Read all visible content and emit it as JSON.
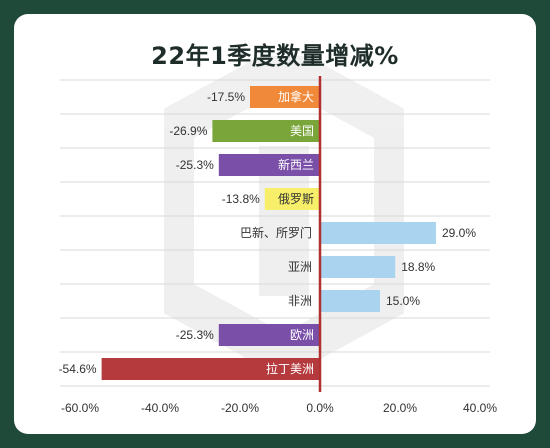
{
  "chart_data": {
    "type": "bar",
    "orientation": "horizontal",
    "title": "22年1季度数量增减%",
    "categories": [
      "加拿大",
      "美国",
      "新西兰",
      "俄罗斯",
      "巴新、所罗门",
      "亚洲",
      "非洲",
      "欧洲",
      "拉丁美洲"
    ],
    "values": [
      -17.5,
      -26.9,
      -25.3,
      -13.8,
      29.0,
      18.8,
      15.0,
      -25.3,
      -54.6
    ],
    "value_labels": [
      "-17.5%",
      "-26.9%",
      "-25.3%",
      "-13.8%",
      "29.0%",
      "18.8%",
      "15.0%",
      "-25.3%",
      "-54.6%"
    ],
    "bar_colors": [
      "#f08a3a",
      "#7aa53a",
      "#7a4fa8",
      "#f7ef6a",
      "#a9d3ef",
      "#a9d3ef",
      "#a9d3ef",
      "#7a4fa8",
      "#b53a3e"
    ],
    "label_colors": [
      "#ffffff",
      "#ffffff",
      "#ffffff",
      "#333333",
      "#333333",
      "#333333",
      "#333333",
      "#ffffff",
      "#ffffff"
    ],
    "xlim": [
      -60,
      40
    ],
    "x_ticks": [
      -60,
      -40,
      -20,
      0,
      20,
      40
    ],
    "x_tick_labels": [
      "-60.0%",
      "-40.0%",
      "-20.0%",
      "0.0%",
      "20.0%",
      "40.0%"
    ],
    "grid": true,
    "zero_line_color": "#b0302f"
  }
}
